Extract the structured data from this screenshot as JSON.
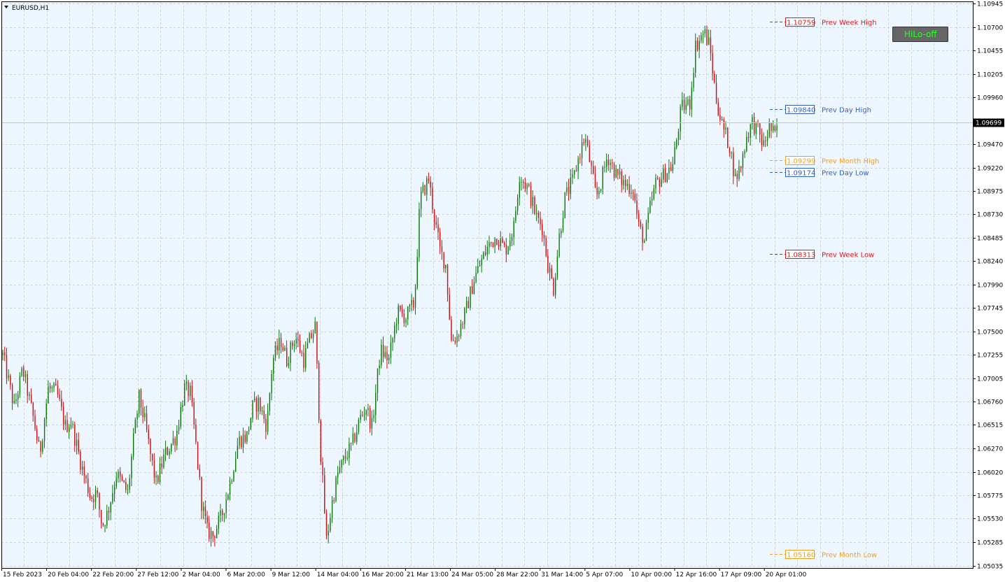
{
  "window": {
    "symbol_label": "EURUSD,H1",
    "hilo_button_label": "HiLo-off"
  },
  "colors": {
    "background": "#eef6ff",
    "grid": "#c8d3e0",
    "bull": "#0a7a0a",
    "bear": "#cc1111",
    "week": "#e01818",
    "day": "#2f5fce",
    "month": "#f0a020",
    "current_price_bg": "#000000",
    "button_bg": "#666666",
    "button_text": "#2dff2d"
  },
  "chart_data": {
    "type": "candlestick",
    "symbol": "EURUSD",
    "timeframe": "H1",
    "current_price": 1.09699,
    "current_price_label": "1.09699",
    "y_ticks": [
      "1.10945",
      "1.10700",
      "1.10455",
      "1.10205",
      "1.09960",
      "1.09470",
      "1.09220",
      "1.08975",
      "1.08730",
      "1.08485",
      "1.08240",
      "1.07990",
      "1.07745",
      "1.07500",
      "1.07255",
      "1.07005",
      "1.06760",
      "1.06515",
      "1.06270",
      "1.06020",
      "1.05775",
      "1.05530",
      "1.05285",
      "1.05035"
    ],
    "ylim": [
      1.0501,
      1.1097
    ],
    "x_ticks": [
      "15 Feb 2023",
      "20 Feb 04:00",
      "22 Feb 20:00",
      "27 Feb 12:00",
      "2 Mar 04:00",
      "6 Mar 20:00",
      "9 Mar 12:00",
      "14 Mar 04:00",
      "16 Mar 20:00",
      "21 Mar 13:00",
      "24 Mar 05:00",
      "28 Mar 22:00",
      "31 Mar 14:00",
      "5 Apr 07:00",
      "10 Apr 00:00",
      "12 Apr 16:00",
      "17 Apr 09:00",
      "20 Apr 01:00"
    ],
    "levels": [
      {
        "name": "Prev Week High",
        "value": 1.10759,
        "label": "1.10759",
        "color": "#e01818"
      },
      {
        "name": "Prev Day High",
        "value": 1.0984,
        "label": "1.09840",
        "color": "#2f5fce"
      },
      {
        "name": "Prev Month High",
        "value": 1.09299,
        "label": "1.09299",
        "color": "#f0a020"
      },
      {
        "name": "Prev Day Low",
        "value": 1.09174,
        "label": "1.09174",
        "color": "#2f5fce"
      },
      {
        "name": "Prev Week Low",
        "value": 1.08313,
        "label": "1.08313",
        "color": "#e01818"
      },
      {
        "name": "Prev Month Low",
        "value": 1.0516,
        "label": "1.05160",
        "color": "#f0a020"
      }
    ],
    "price_path_approx": [
      [
        0,
        1.0725
      ],
      [
        4,
        1.067
      ],
      [
        7,
        1.071
      ],
      [
        11,
        1.0655
      ],
      [
        13,
        1.062
      ],
      [
        16,
        1.069
      ],
      [
        19,
        1.0685
      ],
      [
        22,
        1.065
      ],
      [
        24,
        1.0655
      ],
      [
        26,
        1.063
      ],
      [
        28,
        1.0605
      ],
      [
        31,
        1.0575
      ],
      [
        33,
        1.058
      ],
      [
        35,
        1.0545
      ],
      [
        37,
        1.056
      ],
      [
        40,
        1.06
      ],
      [
        44,
        1.058
      ],
      [
        46,
        1.0635
      ],
      [
        48,
        1.068
      ],
      [
        50,
        1.0655
      ],
      [
        52,
        1.062
      ],
      [
        54,
        1.059
      ],
      [
        57,
        1.062
      ],
      [
        61,
        1.064
      ],
      [
        64,
        1.069
      ],
      [
        66,
        1.0685
      ],
      [
        68,
        1.063
      ],
      [
        70,
        1.057
      ],
      [
        72,
        1.054
      ],
      [
        74,
        1.0535
      ],
      [
        77,
        1.0555
      ],
      [
        80,
        1.059
      ],
      [
        83,
        1.0635
      ],
      [
        86,
        1.064
      ],
      [
        88,
        1.067
      ],
      [
        90,
        1.0675
      ],
      [
        93,
        1.065
      ],
      [
        95,
        1.072
      ],
      [
        98,
        1.074
      ],
      [
        100,
        1.072
      ],
      [
        103,
        1.0745
      ],
      [
        106,
        1.072
      ],
      [
        108,
        1.074
      ],
      [
        110,
        1.0755
      ],
      [
        112,
        1.062
      ],
      [
        114,
        1.053
      ],
      [
        116,
        1.057
      ],
      [
        118,
        1.06
      ],
      [
        121,
        1.062
      ],
      [
        123,
        1.063
      ],
      [
        126,
        1.066
      ],
      [
        128,
        1.067
      ],
      [
        130,
        1.065
      ],
      [
        133,
        1.073
      ],
      [
        136,
        1.072
      ],
      [
        139,
        1.077
      ],
      [
        142,
        1.0765
      ],
      [
        145,
        1.078
      ],
      [
        147,
        1.089
      ],
      [
        150,
        1.091
      ],
      [
        152,
        1.087
      ],
      [
        154,
        1.0835
      ],
      [
        156,
        1.082
      ],
      [
        158,
        1.074
      ],
      [
        160,
        1.0745
      ],
      [
        163,
        1.077
      ],
      [
        166,
        1.0805
      ],
      [
        168,
        1.082
      ],
      [
        171,
        1.084
      ],
      [
        174,
        1.085
      ],
      [
        177,
        1.0835
      ],
      [
        180,
        1.086
      ],
      [
        182,
        1.0915
      ],
      [
        185,
        1.09
      ],
      [
        188,
        1.087
      ],
      [
        190,
        1.086
      ],
      [
        192,
        1.082
      ],
      [
        194,
        1.0795
      ],
      [
        196,
        1.085
      ],
      [
        198,
        1.089
      ],
      [
        201,
        1.091
      ],
      [
        203,
        1.0935
      ],
      [
        205,
        1.0955
      ],
      [
        207,
        1.0925
      ],
      [
        209,
        1.089
      ],
      [
        211,
        1.091
      ],
      [
        213,
        1.0935
      ],
      [
        216,
        1.0915
      ],
      [
        219,
        1.0905
      ],
      [
        222,
        1.09
      ],
      [
        224,
        1.086
      ],
      [
        226,
        1.0845
      ],
      [
        228,
        1.088
      ],
      [
        230,
        1.0905
      ],
      [
        233,
        1.0915
      ],
      [
        236,
        1.0925
      ],
      [
        239,
        1.0985
      ],
      [
        242,
        1.099
      ],
      [
        244,
        1.105
      ],
      [
        247,
        1.1065
      ],
      [
        249,
        1.105
      ],
      [
        251,
        1.1
      ],
      [
        253,
        1.097
      ],
      [
        256,
        1.0945
      ],
      [
        258,
        1.091
      ],
      [
        260,
        1.0925
      ],
      [
        262,
        1.0955
      ],
      [
        264,
        1.097
      ],
      [
        266,
        1.096
      ],
      [
        268,
        1.0945
      ],
      [
        270,
        1.0965
      ],
      [
        272,
        1.0955
      ],
      [
        273,
        1.097
      ]
    ]
  }
}
